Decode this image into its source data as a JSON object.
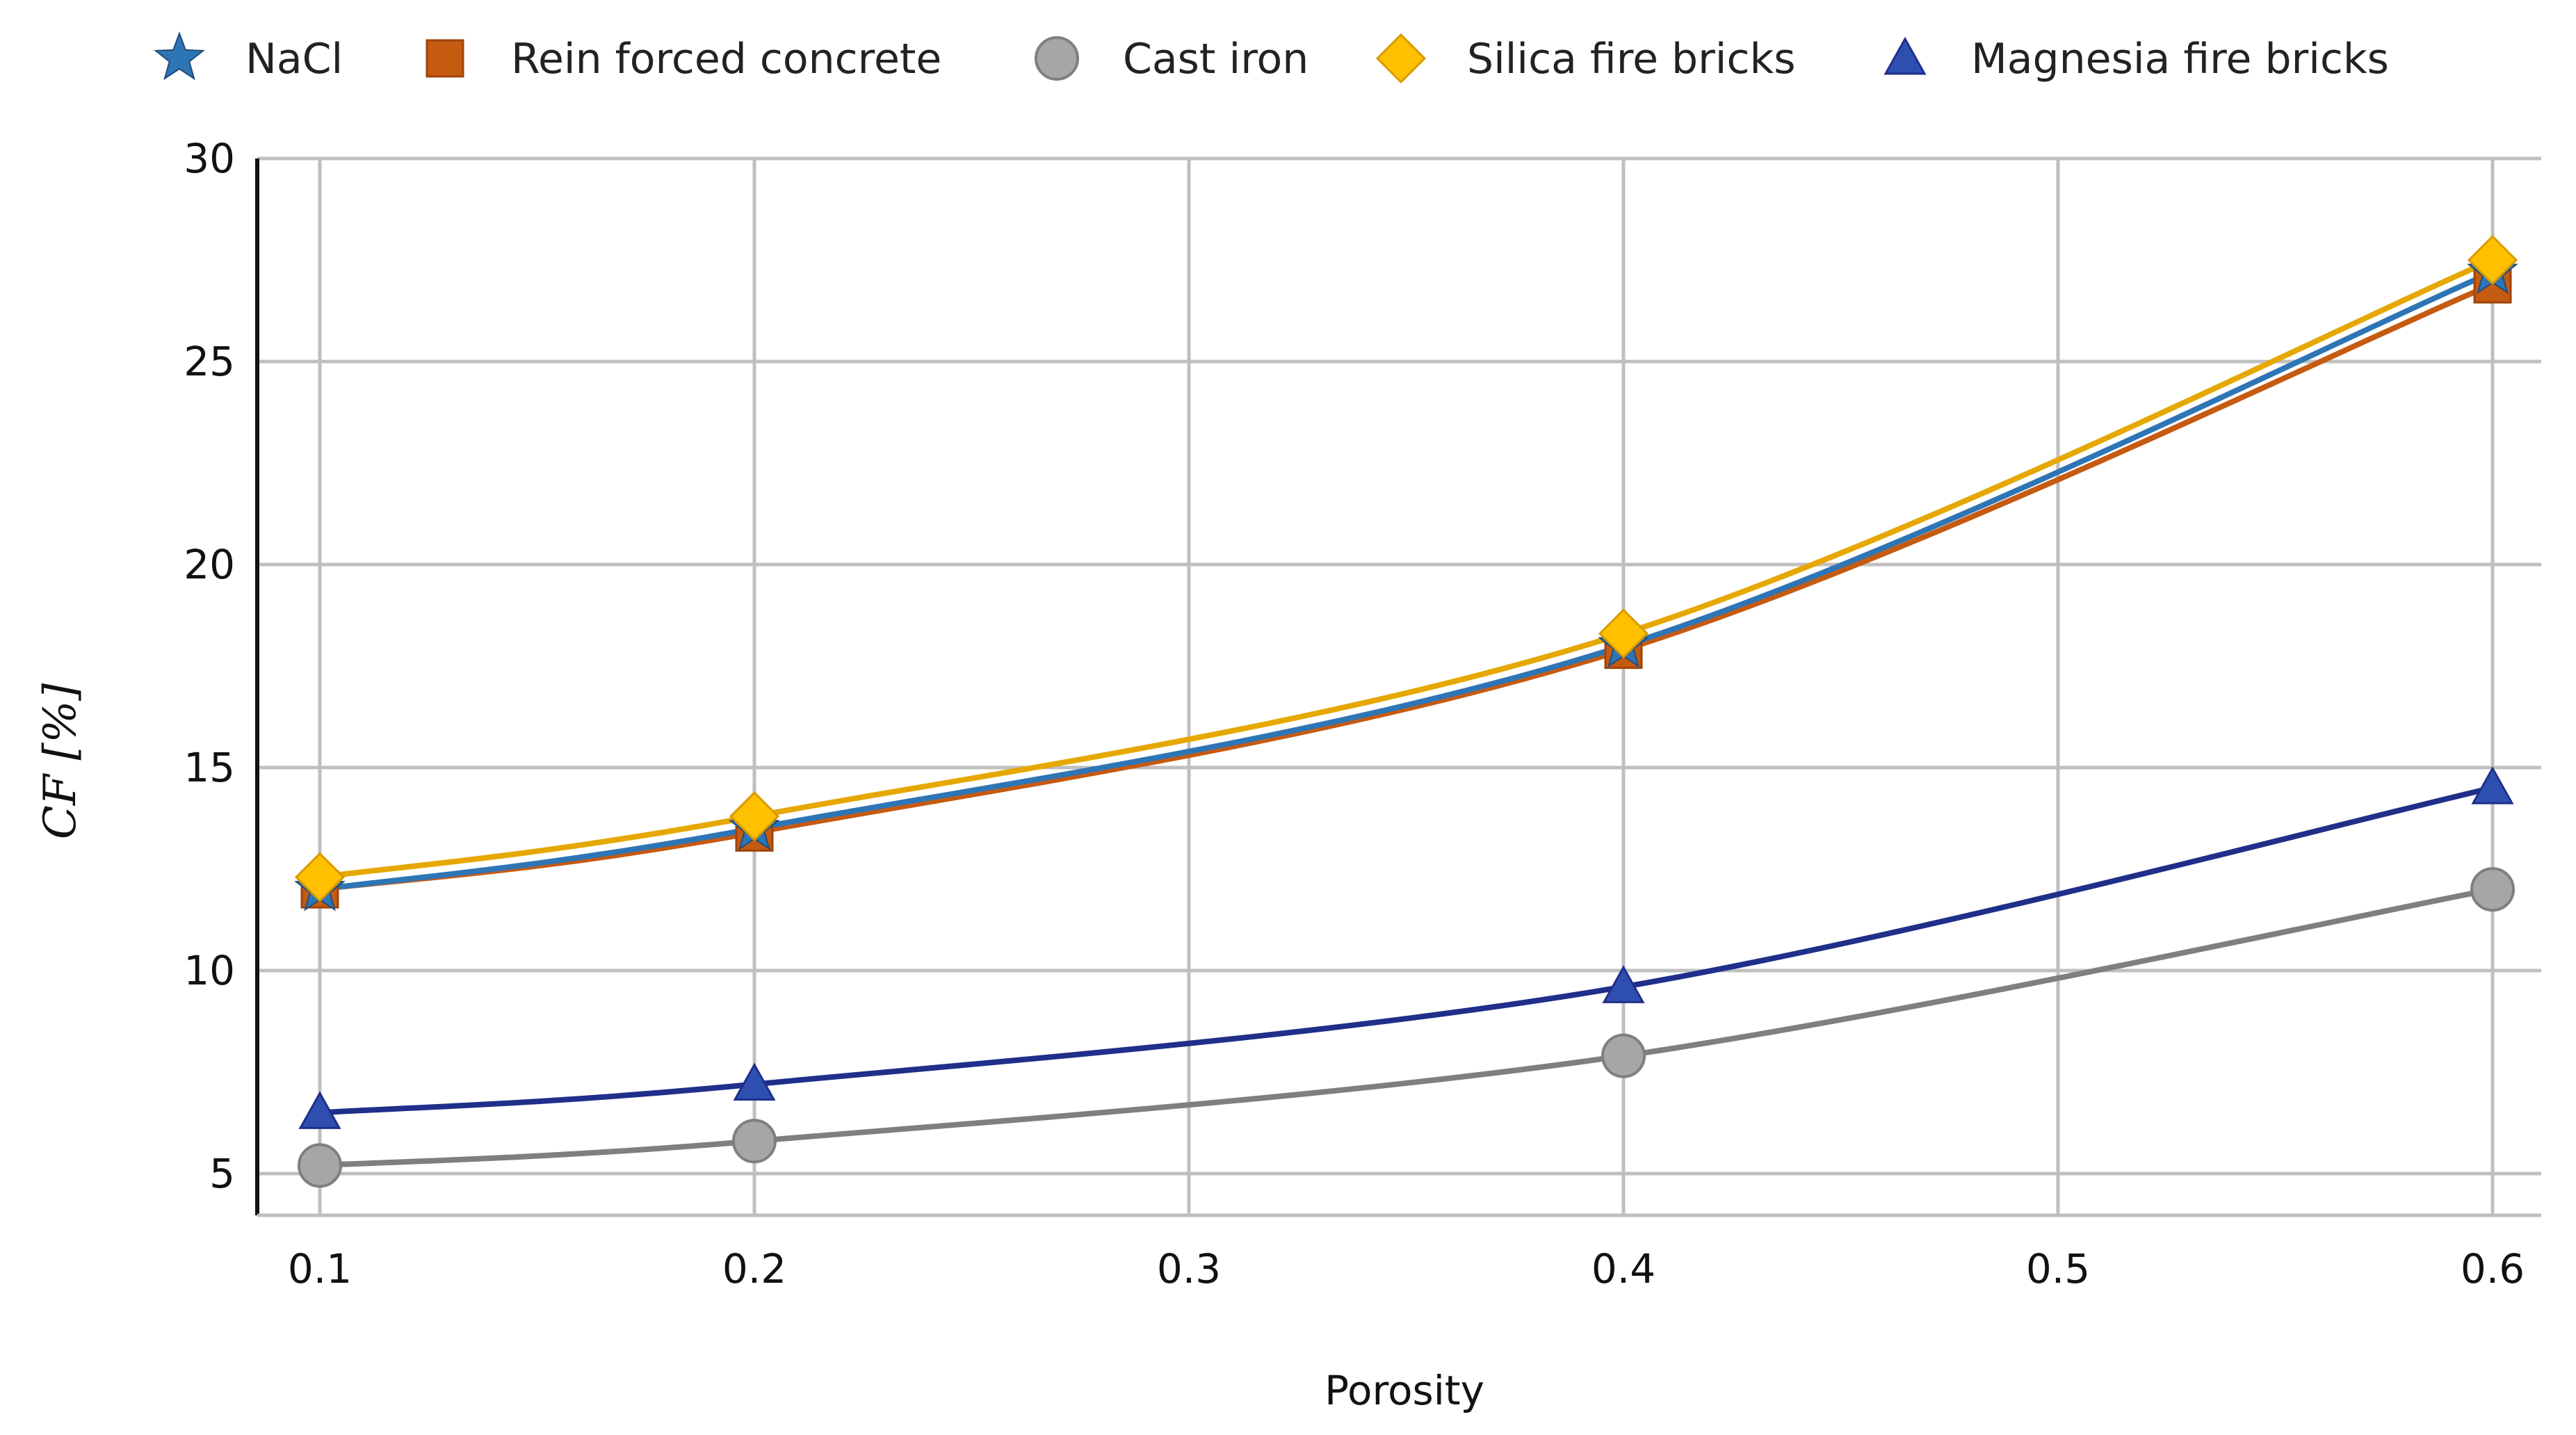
{
  "chart_data": {
    "type": "line",
    "title": "",
    "xlabel": "Porosity",
    "ylabel": "CF [%]",
    "x": [
      0.1,
      0.2,
      0.4,
      0.6
    ],
    "xticks": [
      "0.1",
      "0.2",
      "0.3",
      "0.4",
      "0.5",
      "0.6"
    ],
    "xlim": [
      0.1,
      0.6
    ],
    "yticks": [
      "5",
      "10",
      "15",
      "20",
      "25",
      "30"
    ],
    "ylim": [
      5,
      30
    ],
    "grid": true,
    "legend_position": "top",
    "series": [
      {
        "name": "NaCl",
        "values": [
          12.0,
          13.5,
          18.0,
          27.2
        ],
        "color": "#2E75B6",
        "marker": "star"
      },
      {
        "name": "Rein forced concrete",
        "values": [
          12.0,
          13.4,
          17.9,
          26.9
        ],
        "color": "#C55A11",
        "marker": "square"
      },
      {
        "name": "Cast iron",
        "values": [
          5.2,
          5.8,
          7.9,
          12.0
        ],
        "color": "#7F7F7F",
        "marker": "circle"
      },
      {
        "name": "Silica fire bricks",
        "values": [
          12.3,
          13.8,
          18.3,
          27.5
        ],
        "color": "#E6A800",
        "marker": "diamond"
      },
      {
        "name": "Magnesia fire bricks",
        "values": [
          6.5,
          7.2,
          9.6,
          14.5
        ],
        "color": "#1F2F8A",
        "marker": "triangle"
      }
    ]
  }
}
